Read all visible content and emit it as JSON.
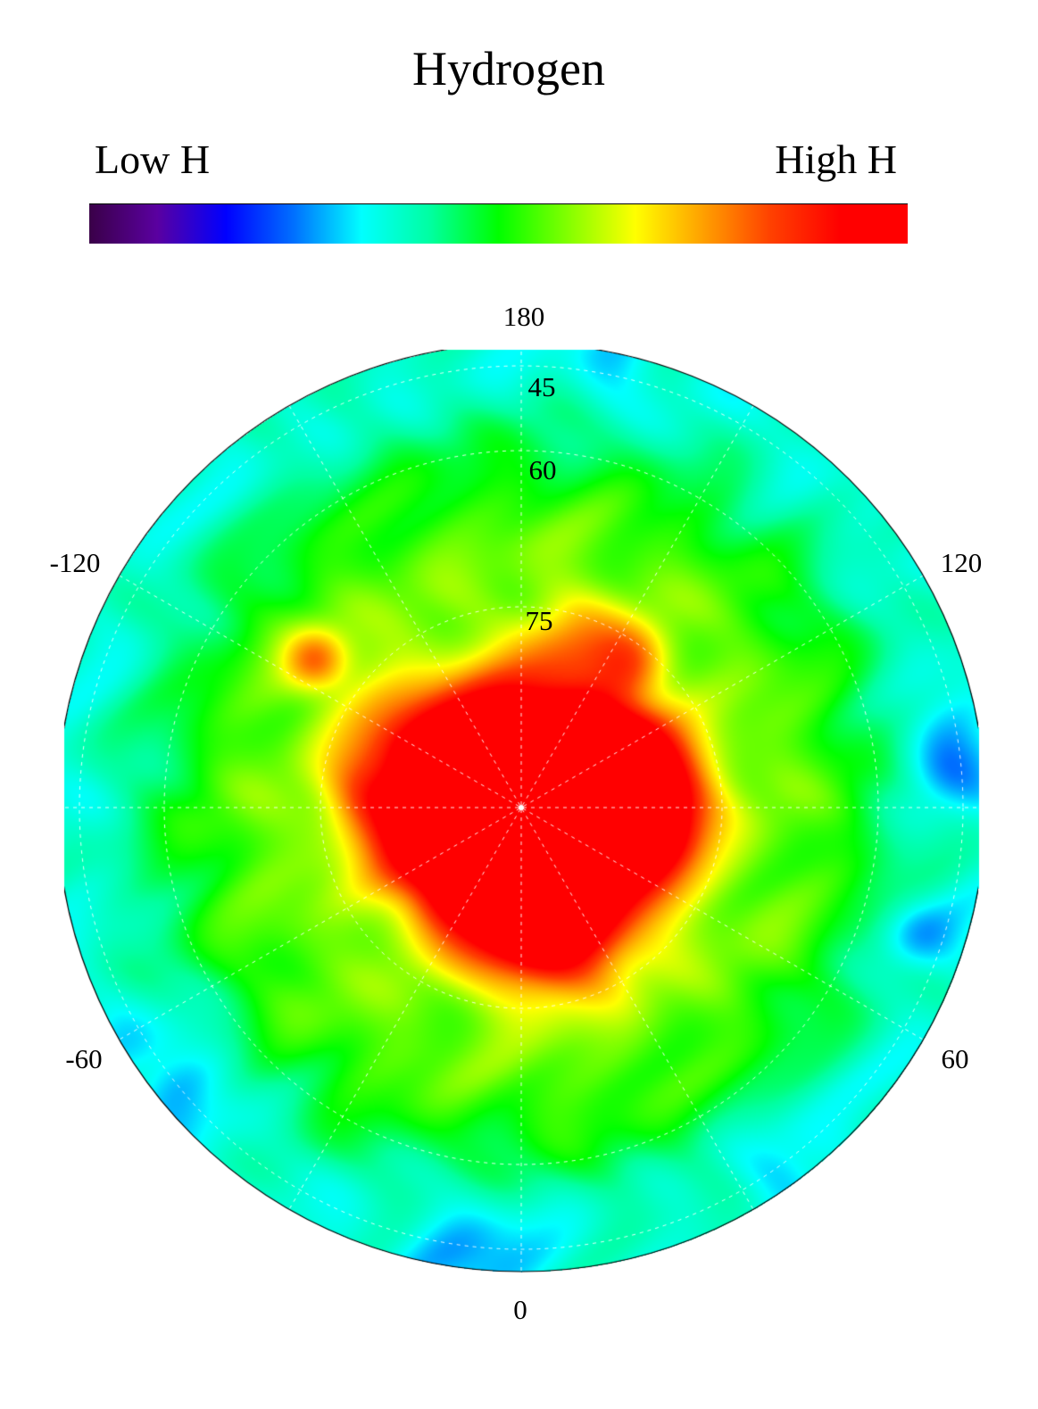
{
  "title": "Hydrogen",
  "colorbar": {
    "low_label": "Low H",
    "high_label": "High H",
    "colormap": [
      "#3a0048",
      "#5a00a0",
      "#0000ff",
      "#0070ff",
      "#00ffff",
      "#00ffa0",
      "#00ff00",
      "#80ff00",
      "#ffff00",
      "#ffa000",
      "#ff4000",
      "#ff0000",
      "#ff0000"
    ]
  },
  "map": {
    "projection": "polar",
    "longitude_labels": {
      "top": "180",
      "upper_left": "-120",
      "upper_right": "120",
      "lower_left": "-60",
      "lower_right": "60",
      "bottom": "0"
    },
    "latitude_labels": [
      "45",
      "60",
      "75"
    ],
    "grid": "dashed white, meridians every 30 degrees",
    "pattern": "high hydrogen (red) concentrated around pole, green mid-latitudes, cyan/blue toward edge"
  }
}
